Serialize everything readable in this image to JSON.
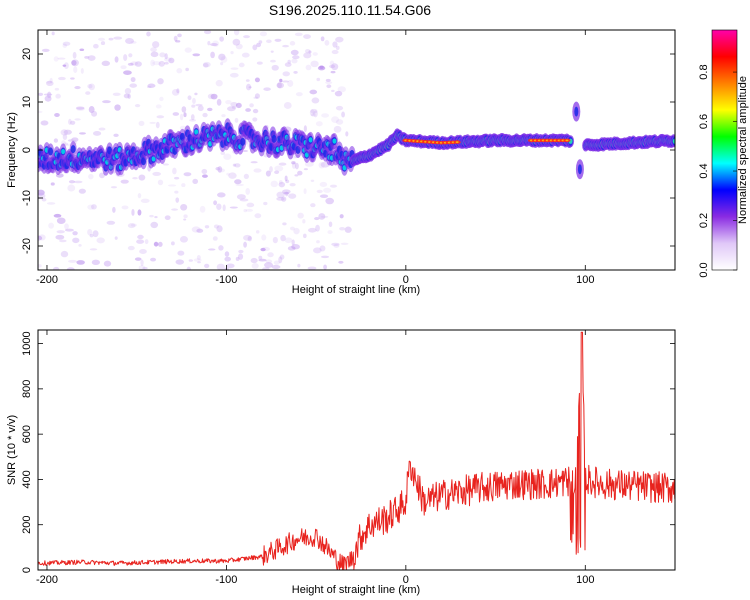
{
  "title": "S196.2025.110.11.54.G06",
  "chart_data": [
    {
      "type": "heatmap",
      "xlabel": "Height of straight line (km)",
      "ylabel": "Frequency (Hz)",
      "xlim": [
        -205,
        150
      ],
      "ylim": [
        -25,
        25
      ],
      "xticks": [
        -200,
        -100,
        0,
        100
      ],
      "yticks": [
        -20,
        -10,
        0,
        10,
        20
      ],
      "colorbar": {
        "label": "Normalized spectral amplitude",
        "range": [
          0.0,
          0.97
        ],
        "ticks": [
          0.0,
          0.2,
          0.4,
          0.6,
          0.8
        ],
        "tick_labels": [
          "0.0",
          "0.2",
          "0.4",
          "0.6",
          "0.8"
        ],
        "colors": [
          "#ffffff",
          "#e0c8f8",
          "#8a2be2",
          "#0000ff",
          "#00ffff",
          "#00ff00",
          "#ffff00",
          "#ff8000",
          "#ff0000",
          "#ff00aa"
        ]
      },
      "ridge": {
        "description_points": [
          [
            -205,
            -2
          ],
          [
            -180,
            -1.5
          ],
          [
            -160,
            -2
          ],
          [
            -140,
            0
          ],
          [
            -120,
            2
          ],
          [
            -100,
            3
          ],
          [
            -80,
            2
          ],
          [
            -60,
            1
          ],
          [
            -40,
            0
          ],
          [
            -35,
            -3
          ],
          [
            -20,
            -1
          ],
          [
            -10,
            1
          ],
          [
            -5,
            3
          ],
          [
            0,
            2
          ],
          [
            20,
            1.5
          ],
          [
            50,
            2
          ],
          [
            90,
            2
          ],
          [
            100,
            1
          ],
          [
            150,
            2
          ]
        ],
        "bright_segments": [
          [
            0,
            30
          ],
          [
            70,
            90
          ]
        ],
        "gaps": [
          [
            92,
            100
          ]
        ]
      }
    },
    {
      "type": "line",
      "xlabel": "Height of straight line (km)",
      "ylabel": "SNR (10 * v/v)",
      "xlim": [
        -205,
        150
      ],
      "ylim": [
        0,
        1060
      ],
      "xticks": [
        -200,
        -100,
        0,
        100
      ],
      "yticks": [
        0,
        200,
        400,
        600,
        800,
        1000
      ],
      "color": "#e8231e",
      "series": [
        {
          "x": [
            -205,
            -180,
            -160,
            -140,
            -120,
            -100,
            -90,
            -80,
            -70,
            -60,
            -50,
            -40,
            -35,
            -30,
            -25,
            -20,
            -10,
            0,
            2,
            10,
            20,
            40,
            60,
            80,
            95,
            98,
            100,
            110,
            130,
            150
          ],
          "y": [
            30,
            35,
            30,
            35,
            40,
            40,
            50,
            60,
            100,
            140,
            150,
            60,
            20,
            50,
            150,
            200,
            230,
            300,
            480,
            300,
            330,
            360,
            380,
            380,
            400,
            1050,
            400,
            380,
            370,
            360
          ]
        }
      ]
    }
  ]
}
